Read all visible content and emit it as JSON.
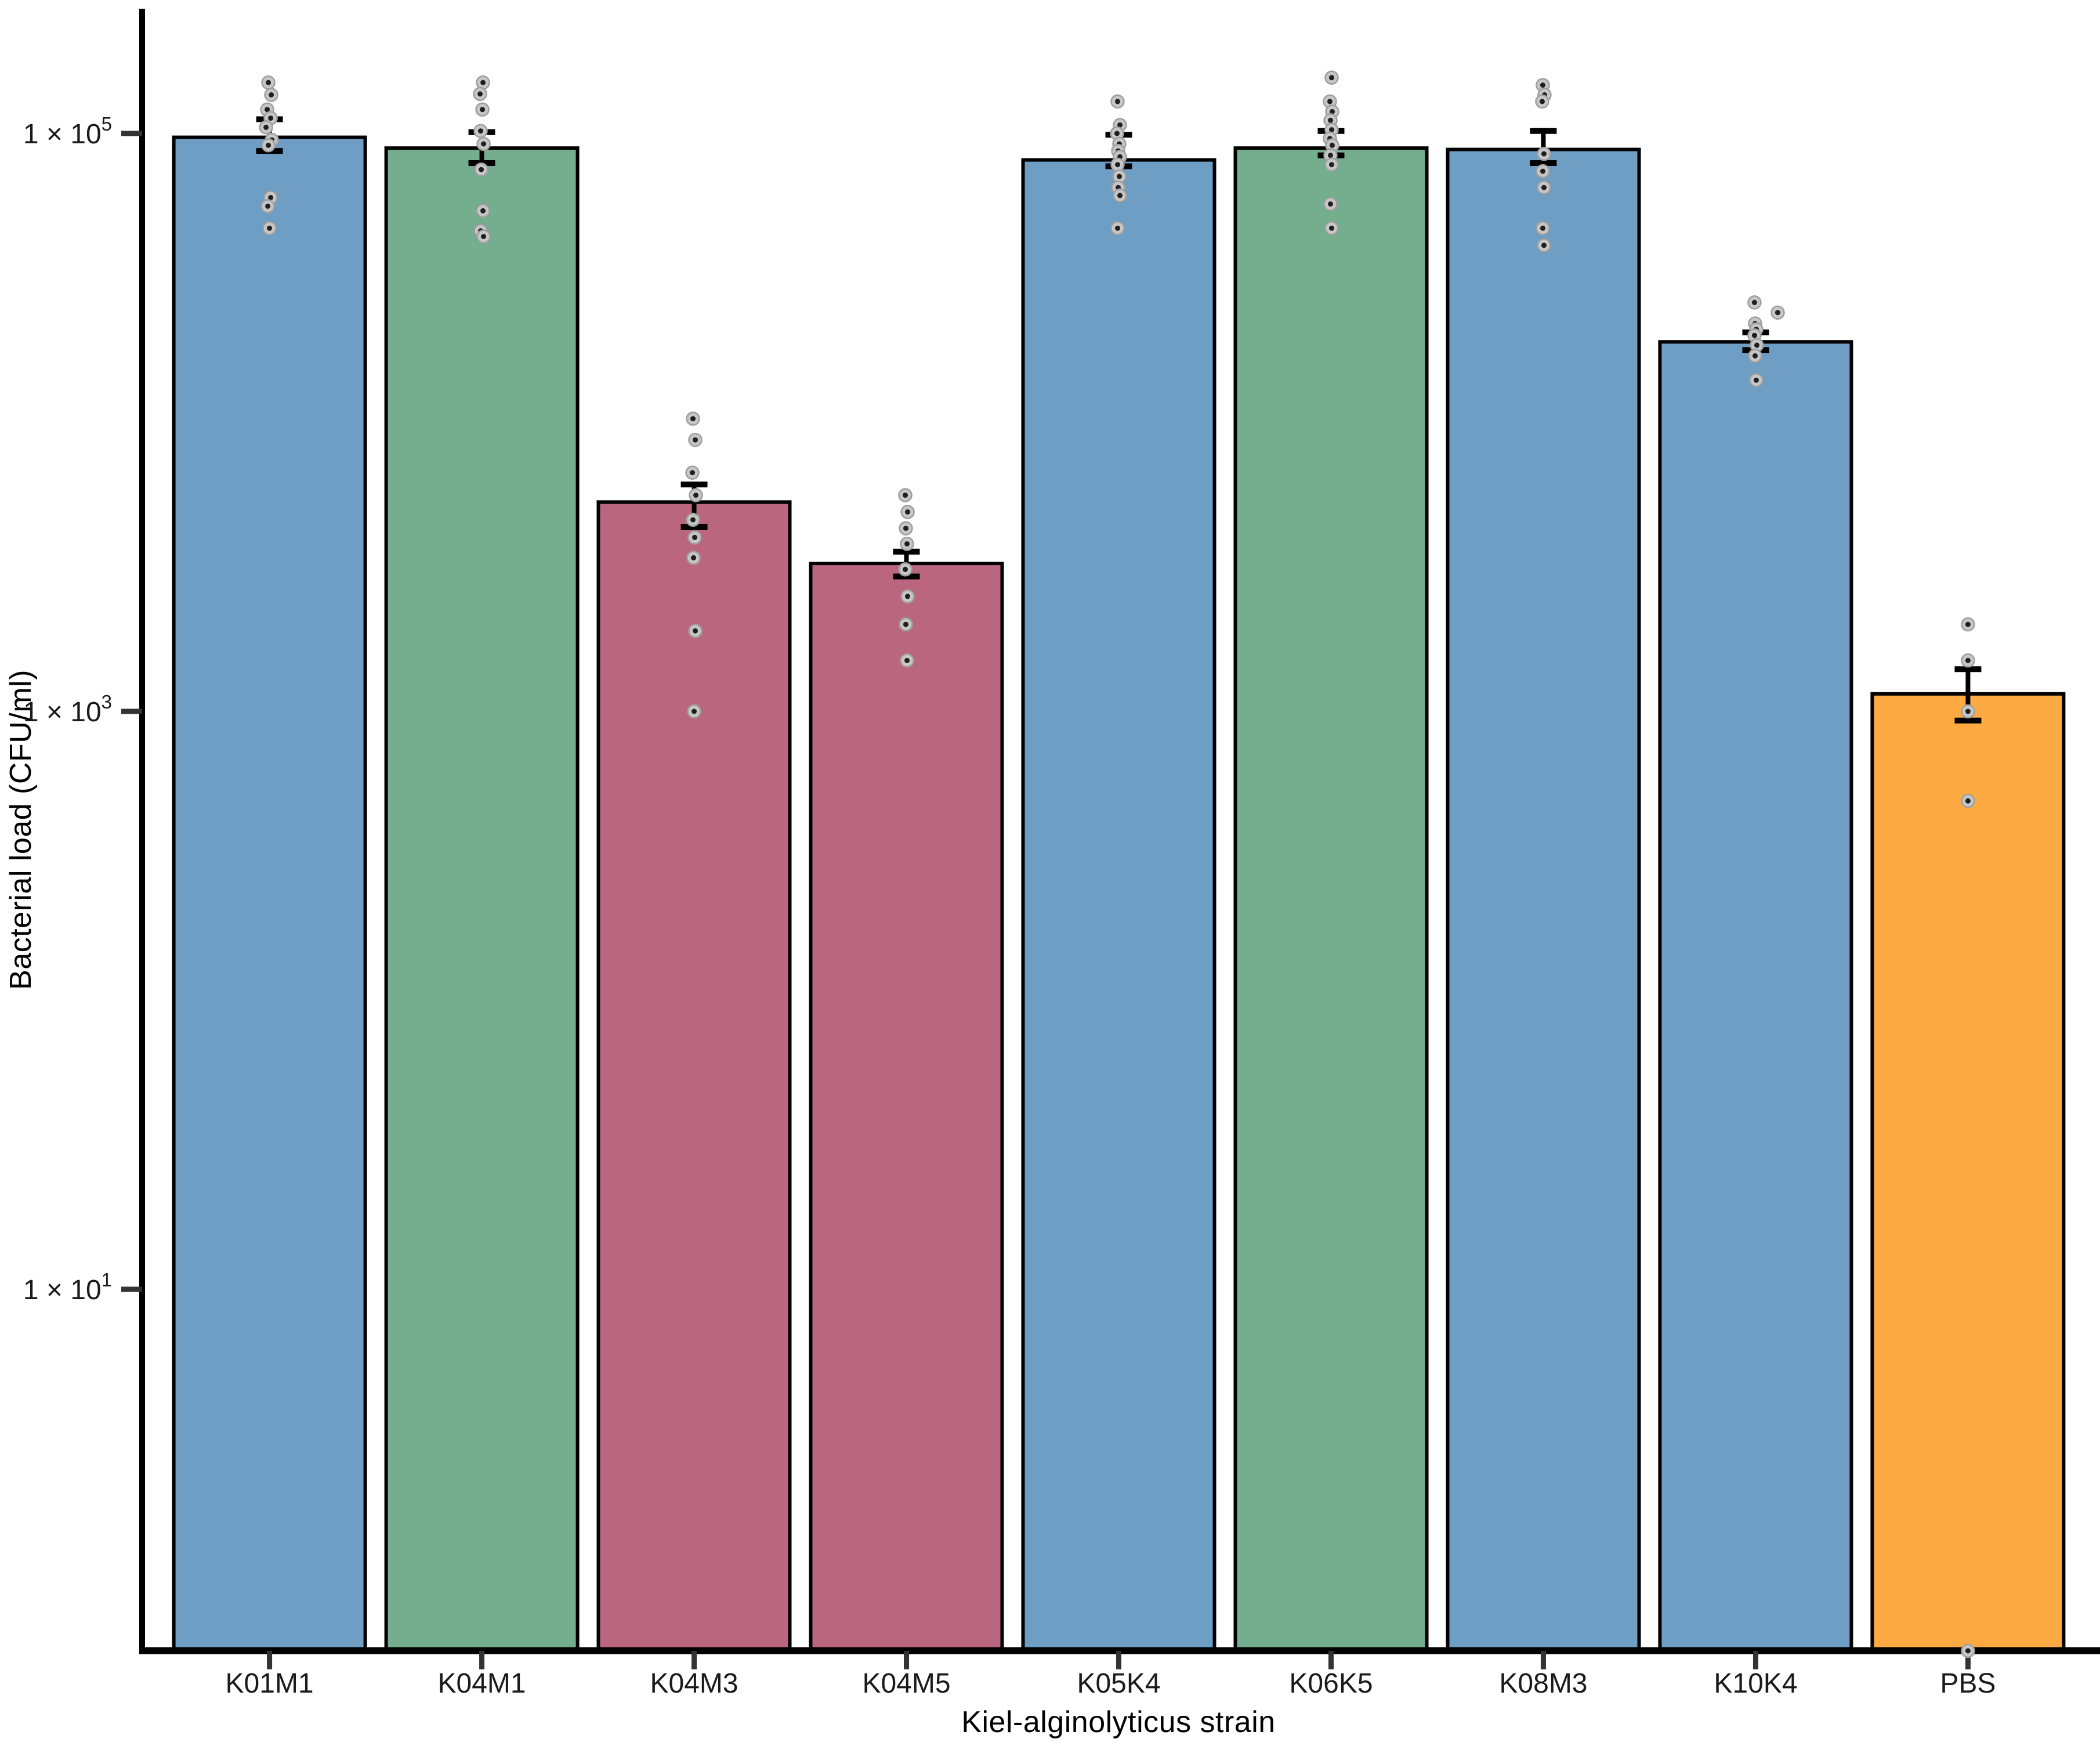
{
  "figure": {
    "background": "#ffffff",
    "axis_color": "#000000",
    "tick_label_color": "#1a1a1a"
  },
  "chart_data": {
    "type": "bar",
    "title": "",
    "xlabel": "Kiel-alginolyticus strain",
    "ylabel": "Bacterial load (CFU/ml)",
    "y_scale": "log10",
    "ylim_log10": [
      -0.25,
      5.43
    ],
    "grid": false,
    "legend": false,
    "y_ticks": [
      {
        "prefix": "1 × 10",
        "exponent": "5",
        "value": 100000
      },
      {
        "prefix": "1 × 10",
        "exponent": "3",
        "value": 1000
      },
      {
        "prefix": "1 × 10",
        "exponent": "1",
        "value": 10
      }
    ],
    "categories": [
      "K01M1",
      "K04M1",
      "K04M3",
      "K04M5",
      "K05K4",
      "K06K5",
      "K08M3",
      "K10K4",
      "PBS"
    ],
    "point_style": {
      "fill": "#c6c6c6",
      "edge": "#9e9e9e",
      "core": "#1f1f1f"
    },
    "bars": [
      {
        "strain": "K01M1",
        "color": "#6f9ec5",
        "mean": 97000,
        "err_low": 87000,
        "err_high": 112000,
        "points": [
          150000,
          136000,
          121000,
          113000,
          105000,
          95000,
          91000,
          60000,
          56000,
          47000
        ],
        "jitter": [
          -2,
          3,
          -4,
          2,
          -6,
          4,
          -2,
          2,
          -3,
          0
        ]
      },
      {
        "strain": "K04M1",
        "color": "#74ae8e",
        "mean": 89000,
        "err_low": 79000,
        "err_high": 101000,
        "points": [
          150000,
          137000,
          121000,
          102000,
          92000,
          75000,
          54000,
          46000,
          44000
        ],
        "jitter": [
          2,
          -3,
          1,
          -2,
          3,
          -1,
          2,
          -2,
          3
        ]
      },
      {
        "strain": "K04M3",
        "color": "#bb6680",
        "mean": 5300,
        "err_low": 4350,
        "err_high": 6100,
        "points": [
          10300,
          8700,
          6700,
          5600,
          4600,
          4000,
          3400,
          1900,
          1000
        ],
        "jitter": [
          -2,
          2,
          -3,
          3,
          -2,
          1,
          -1,
          2,
          0
        ]
      },
      {
        "strain": "K04M5",
        "color": "#bb6680",
        "mean": 3250,
        "err_low": 2930,
        "err_high": 3570,
        "points": [
          5600,
          4900,
          4300,
          3800,
          3100,
          2500,
          2000,
          1500
        ],
        "jitter": [
          -2,
          2,
          -1,
          1,
          -2,
          2,
          -1,
          1
        ]
      },
      {
        "strain": "K05K4",
        "color": "#6f9ec5",
        "mean": 81000,
        "err_low": 77000,
        "err_high": 99000,
        "points": [
          129000,
          107000,
          100000,
          92000,
          87000,
          83000,
          78000,
          71000,
          65000,
          61000,
          47000
        ],
        "jitter": [
          -2,
          2,
          -3,
          1,
          -1,
          2,
          -2,
          1,
          -1,
          2,
          -2
        ]
      },
      {
        "strain": "K06K5",
        "color": "#74ae8e",
        "mean": 89000,
        "err_low": 84000,
        "err_high": 102000,
        "points": [
          156000,
          129000,
          119000,
          111000,
          103000,
          96000,
          91000,
          84000,
          78000,
          57000,
          47000
        ],
        "jitter": [
          1,
          -2,
          2,
          -1,
          1,
          -2,
          2,
          -1,
          1,
          -1,
          1
        ]
      },
      {
        "strain": "K08M3",
        "color": "#6f9ec5",
        "mean": 88000,
        "err_low": 79000,
        "err_high": 102000,
        "points": [
          147000,
          136000,
          129000,
          85000,
          74000,
          65000,
          47000,
          41000
        ],
        "jitter": [
          -1,
          2,
          -2,
          1,
          -1,
          1,
          -1,
          1
        ]
      },
      {
        "strain": "K10K4",
        "color": "#6f9ec5",
        "mean": 19000,
        "err_low": 17800,
        "err_high": 20500,
        "points": [
          26000,
          24000,
          22000,
          21000,
          20000,
          18500,
          17000,
          14000
        ],
        "jitter": [
          -2,
          38,
          -1,
          1,
          -2,
          2,
          -1,
          1
        ]
      },
      {
        "strain": "PBS",
        "color": "#fdaa43",
        "mean": 1150,
        "err_low": 930,
        "err_high": 1400,
        "points": [
          2000,
          1500,
          1000,
          490,
          0
        ],
        "jitter": [
          0,
          0,
          0,
          0,
          0
        ]
      }
    ]
  }
}
